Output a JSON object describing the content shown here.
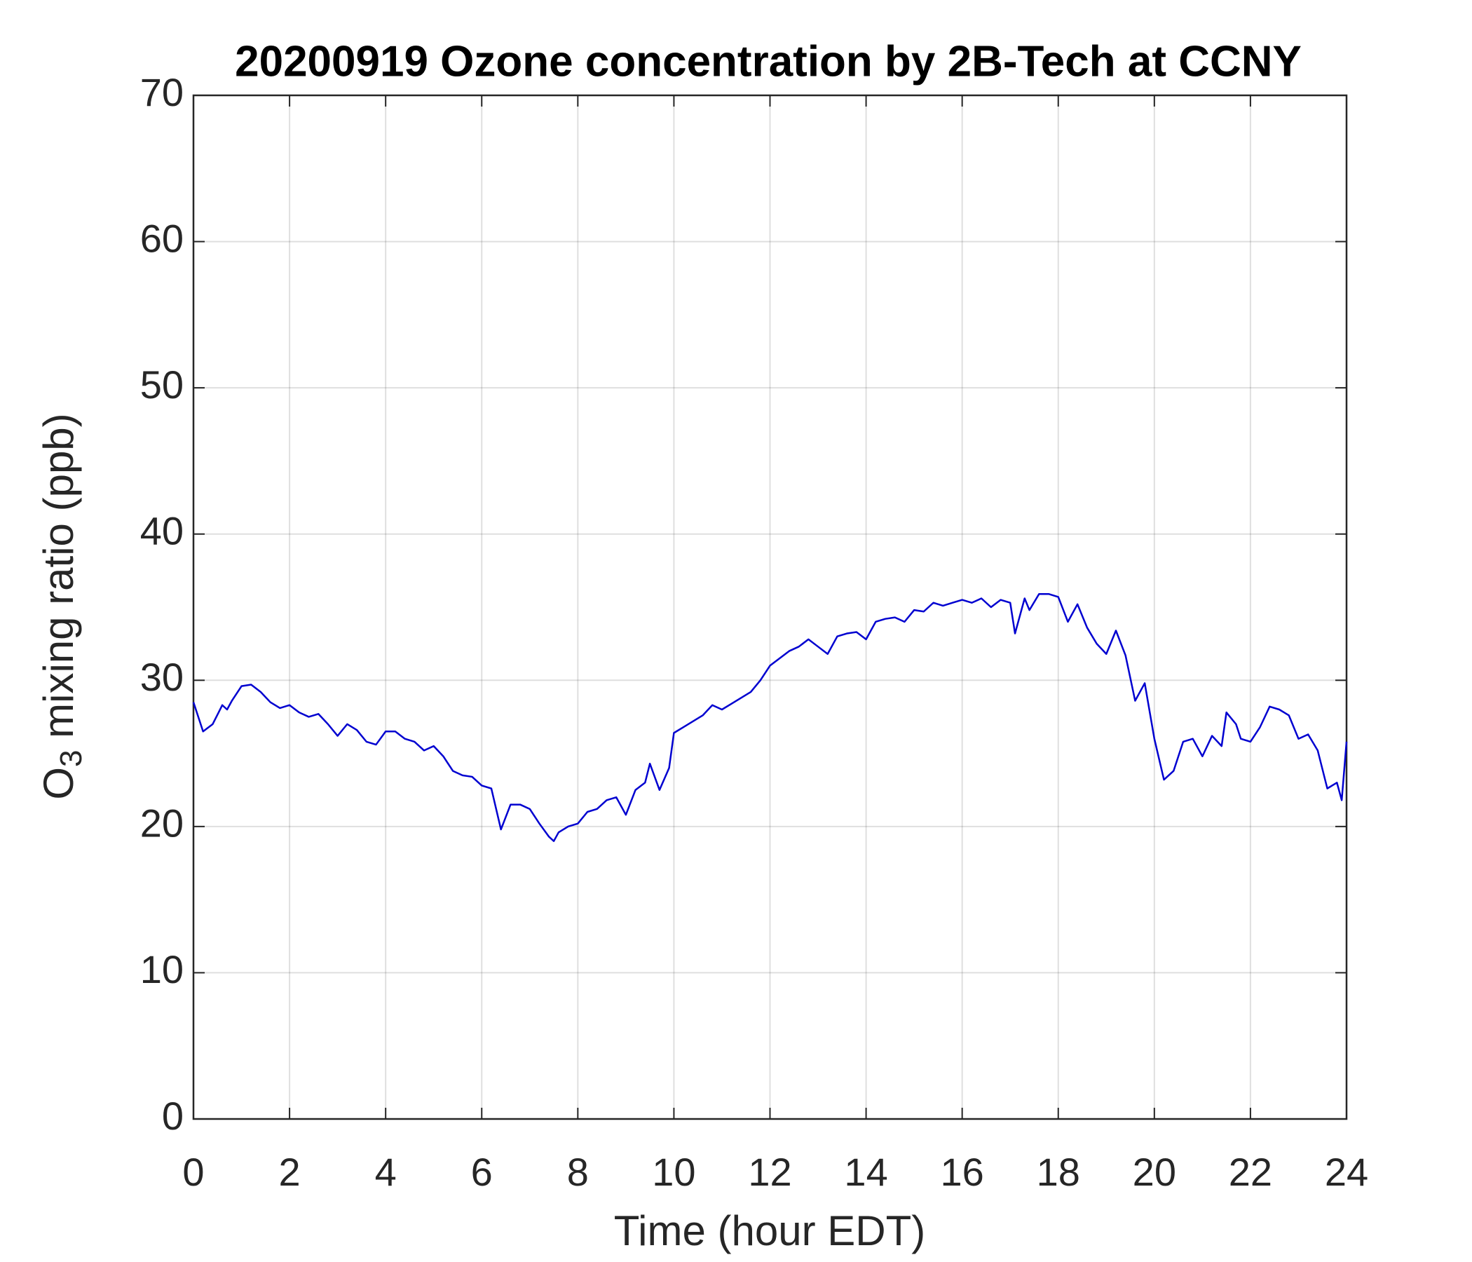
{
  "chart_data": {
    "type": "line",
    "title": "20200919 Ozone concentration by 2B-Tech at CCNY",
    "xlabel": "Time (hour EDT)",
    "ylabel": {
      "base": "O",
      "sub": "3",
      "rest": " mixing ratio (ppb)"
    },
    "xlim": [
      0,
      24
    ],
    "ylim": [
      0,
      70
    ],
    "xticks": [
      0,
      2,
      4,
      6,
      8,
      10,
      12,
      14,
      16,
      18,
      20,
      22,
      24
    ],
    "yticks": [
      0,
      10,
      20,
      30,
      40,
      50,
      60,
      70
    ],
    "grid": true,
    "series": [
      {
        "color": "#0000d0",
        "x": [
          0,
          0.2,
          0.4,
          0.6,
          0.7,
          0.8,
          1.0,
          1.2,
          1.4,
          1.6,
          1.8,
          2.0,
          2.2,
          2.4,
          2.6,
          2.8,
          3.0,
          3.2,
          3.4,
          3.6,
          3.8,
          4.0,
          4.2,
          4.4,
          4.6,
          4.8,
          5.0,
          5.2,
          5.4,
          5.6,
          5.8,
          6.0,
          6.2,
          6.4,
          6.6,
          6.8,
          7.0,
          7.2,
          7.4,
          7.5,
          7.6,
          7.8,
          8.0,
          8.2,
          8.4,
          8.6,
          8.8,
          9.0,
          9.2,
          9.4,
          9.5,
          9.7,
          9.9,
          10.0,
          10.2,
          10.4,
          10.6,
          10.8,
          11.0,
          11.2,
          11.4,
          11.6,
          11.8,
          12.0,
          12.2,
          12.4,
          12.6,
          12.8,
          13.0,
          13.2,
          13.4,
          13.6,
          13.8,
          14.0,
          14.2,
          14.4,
          14.6,
          14.8,
          15.0,
          15.2,
          15.4,
          15.6,
          15.8,
          16.0,
          16.2,
          16.4,
          16.6,
          16.8,
          17.0,
          17.1,
          17.3,
          17.4,
          17.6,
          17.8,
          18.0,
          18.2,
          18.4,
          18.6,
          18.8,
          19.0,
          19.2,
          19.4,
          19.6,
          19.8,
          20.0,
          20.2,
          20.4,
          20.6,
          20.8,
          21.0,
          21.2,
          21.4,
          21.5,
          21.7,
          21.8,
          22.0,
          22.2,
          22.4,
          22.6,
          22.8,
          23.0,
          23.2,
          23.4,
          23.6,
          23.8,
          23.9,
          24.0
        ],
        "values": [
          28.5,
          26.5,
          27,
          28.3,
          28,
          28.6,
          29.6,
          29.7,
          29.2,
          28.5,
          28.1,
          28.3,
          27.8,
          27.5,
          27.7,
          27,
          26.2,
          27,
          26.6,
          25.8,
          25.6,
          26.5,
          26.5,
          26,
          25.8,
          25.2,
          25.5,
          24.8,
          23.8,
          23.5,
          23.4,
          22.8,
          22.6,
          19.8,
          21.5,
          21.5,
          21.2,
          20.2,
          19.3,
          19,
          19.6,
          20,
          20.2,
          21,
          21.2,
          21.8,
          22,
          20.8,
          22.5,
          23,
          24.3,
          22.5,
          24,
          26.4,
          26.8,
          27.2,
          27.6,
          28.3,
          28,
          28.4,
          28.8,
          29.2,
          30,
          31,
          31.5,
          32,
          32.3,
          32.8,
          32.3,
          31.8,
          33,
          33.2,
          33.3,
          32.8,
          34,
          34.2,
          34.3,
          34,
          34.8,
          34.7,
          35.3,
          35.1,
          35.3,
          35.5,
          35.3,
          35.6,
          35,
          35.5,
          35.3,
          33.2,
          35.6,
          34.8,
          35.9,
          35.9,
          35.7,
          34,
          35.2,
          33.6,
          32.5,
          31.8,
          33.4,
          31.7,
          28.6,
          29.8,
          26,
          23.2,
          23.8,
          25.8,
          26,
          24.8,
          26.2,
          25.5,
          27.8,
          27,
          26,
          25.8,
          26.8,
          28.2,
          28,
          27.6,
          26,
          26.3,
          25.2,
          22.6,
          23,
          21.8,
          25.8
        ]
      }
    ]
  }
}
